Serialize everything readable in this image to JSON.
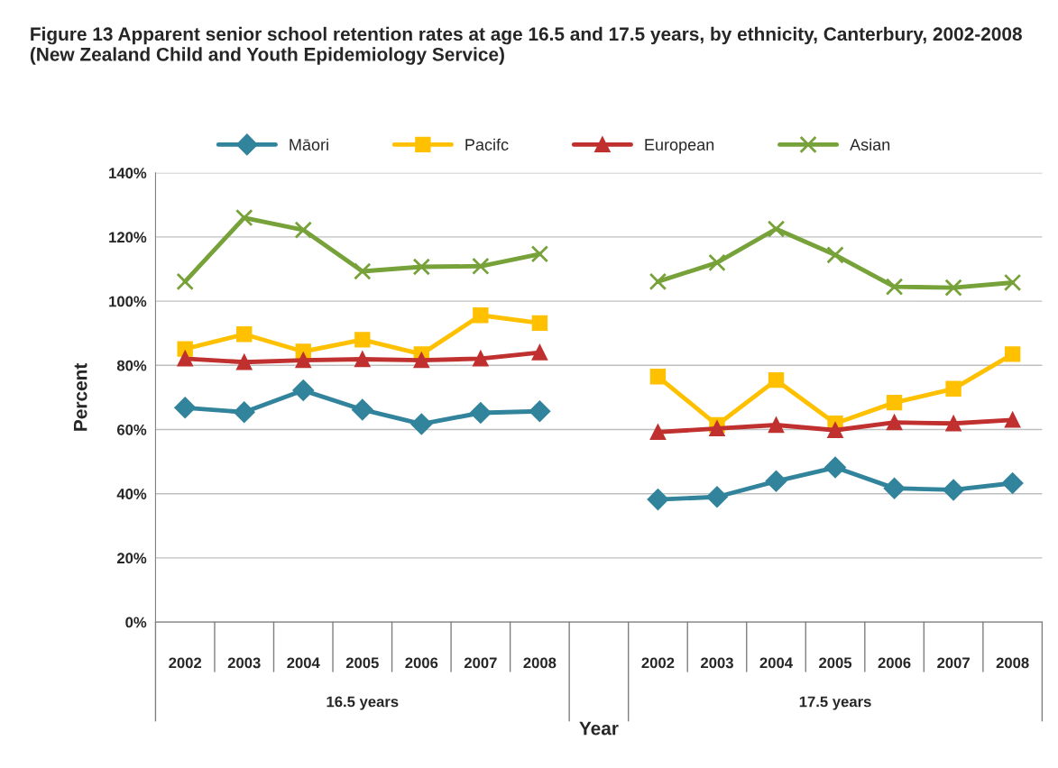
{
  "chart_data": {
    "type": "line",
    "title": "Figure 13 Apparent senior school retention rates at age 16.5 and 17.5 years, by ethnicity, Canterbury, 2002-2008 (New Zealand Child and Youth Epidemiology Service)",
    "xlabel": "Year",
    "ylabel": "Percent",
    "categories": [
      "2002",
      "2003",
      "2004",
      "2005",
      "2006",
      "2007",
      "2008",
      null,
      "2002",
      "2003",
      "2004",
      "2005",
      "2006",
      "2007",
      "2008"
    ],
    "annotations": [
      "16.5 years",
      "17.5 years"
    ],
    "series": [
      {
        "name": "Māori",
        "color": "#31849b",
        "marker": "diamond",
        "values": [
          66.8,
          65.4,
          72.2,
          66.2,
          61.7,
          65.2,
          65.7,
          null,
          38.2,
          39.0,
          43.9,
          48.2,
          41.7,
          41.2,
          43.3
        ]
      },
      {
        "name": "Pacifc",
        "color": "#ffc000",
        "marker": "square",
        "values": [
          85.1,
          89.7,
          84.3,
          88.0,
          83.5,
          95.6,
          93.2,
          null,
          76.5,
          61.4,
          75.4,
          61.9,
          68.4,
          72.7,
          83.5
        ]
      },
      {
        "name": "European",
        "color": "#c0302f",
        "marker": "triangle",
        "values": [
          82.1,
          81.0,
          81.6,
          81.9,
          81.6,
          82.1,
          84.0,
          null,
          59.2,
          60.3,
          61.4,
          59.8,
          62.2,
          61.9,
          63.0
        ]
      },
      {
        "name": "Asian",
        "color": "#77a23a",
        "marker": "cross",
        "values": [
          106.1,
          126.0,
          122.2,
          109.3,
          110.7,
          110.9,
          114.7,
          null,
          106.1,
          112.0,
          122.5,
          114.4,
          104.5,
          104.2,
          105.8
        ]
      }
    ],
    "ylim": [
      0,
      140
    ],
    "yticks": [
      {
        "value": 0,
        "label": "0%"
      },
      {
        "value": 20,
        "label": "20%"
      },
      {
        "value": 40,
        "label": "40%"
      },
      {
        "value": 60,
        "label": "60%"
      },
      {
        "value": 80,
        "label": "80%"
      },
      {
        "value": 100,
        "label": "100%"
      },
      {
        "value": 120,
        "label": "120%"
      },
      {
        "value": 140,
        "label": "140%"
      }
    ],
    "grid": "y",
    "legend": "top",
    "line_style": "solid"
  }
}
